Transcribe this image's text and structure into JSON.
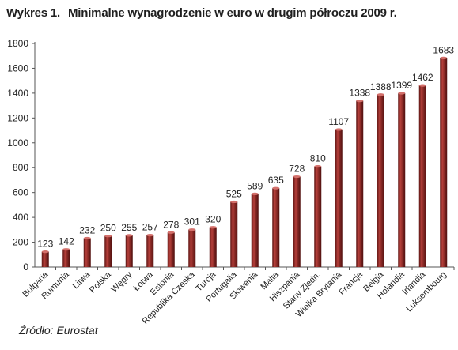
{
  "figure": {
    "label": "Wykres 1.",
    "title": "Minimalne wynagrodzenie w euro w drugim półroczu 2009 r.",
    "source": "Źródło: Eurostat"
  },
  "chart_data": {
    "type": "bar",
    "title": "Minimalne wynagrodzenie w euro w drugim półroczu 2009 r.",
    "xlabel": "",
    "ylabel": "",
    "ylim": [
      0,
      1800
    ],
    "yticks": [
      0,
      200,
      400,
      600,
      800,
      1000,
      1200,
      1400,
      1600,
      1800
    ],
    "grid": false,
    "legend": "none",
    "bar_color": "#8b2a26",
    "categories": [
      "Bułgaria",
      "Rumunia",
      "Litwa",
      "Polska",
      "Węgry",
      "Łotwa",
      "Estonia",
      "Republika Czeska",
      "Turcja",
      "Portugalia",
      "Słowenia",
      "Malta",
      "Hiszpania",
      "Stany Zjedn.",
      "Wielka Brytania",
      "Francja",
      "Belgia",
      "Holandia",
      "Irlandia",
      "Luksembourg"
    ],
    "values": [
      123,
      142,
      232,
      250,
      255,
      257,
      278,
      301,
      320,
      525,
      589,
      635,
      728,
      810,
      1107,
      1338,
      1388,
      1399,
      1462,
      1683
    ]
  }
}
